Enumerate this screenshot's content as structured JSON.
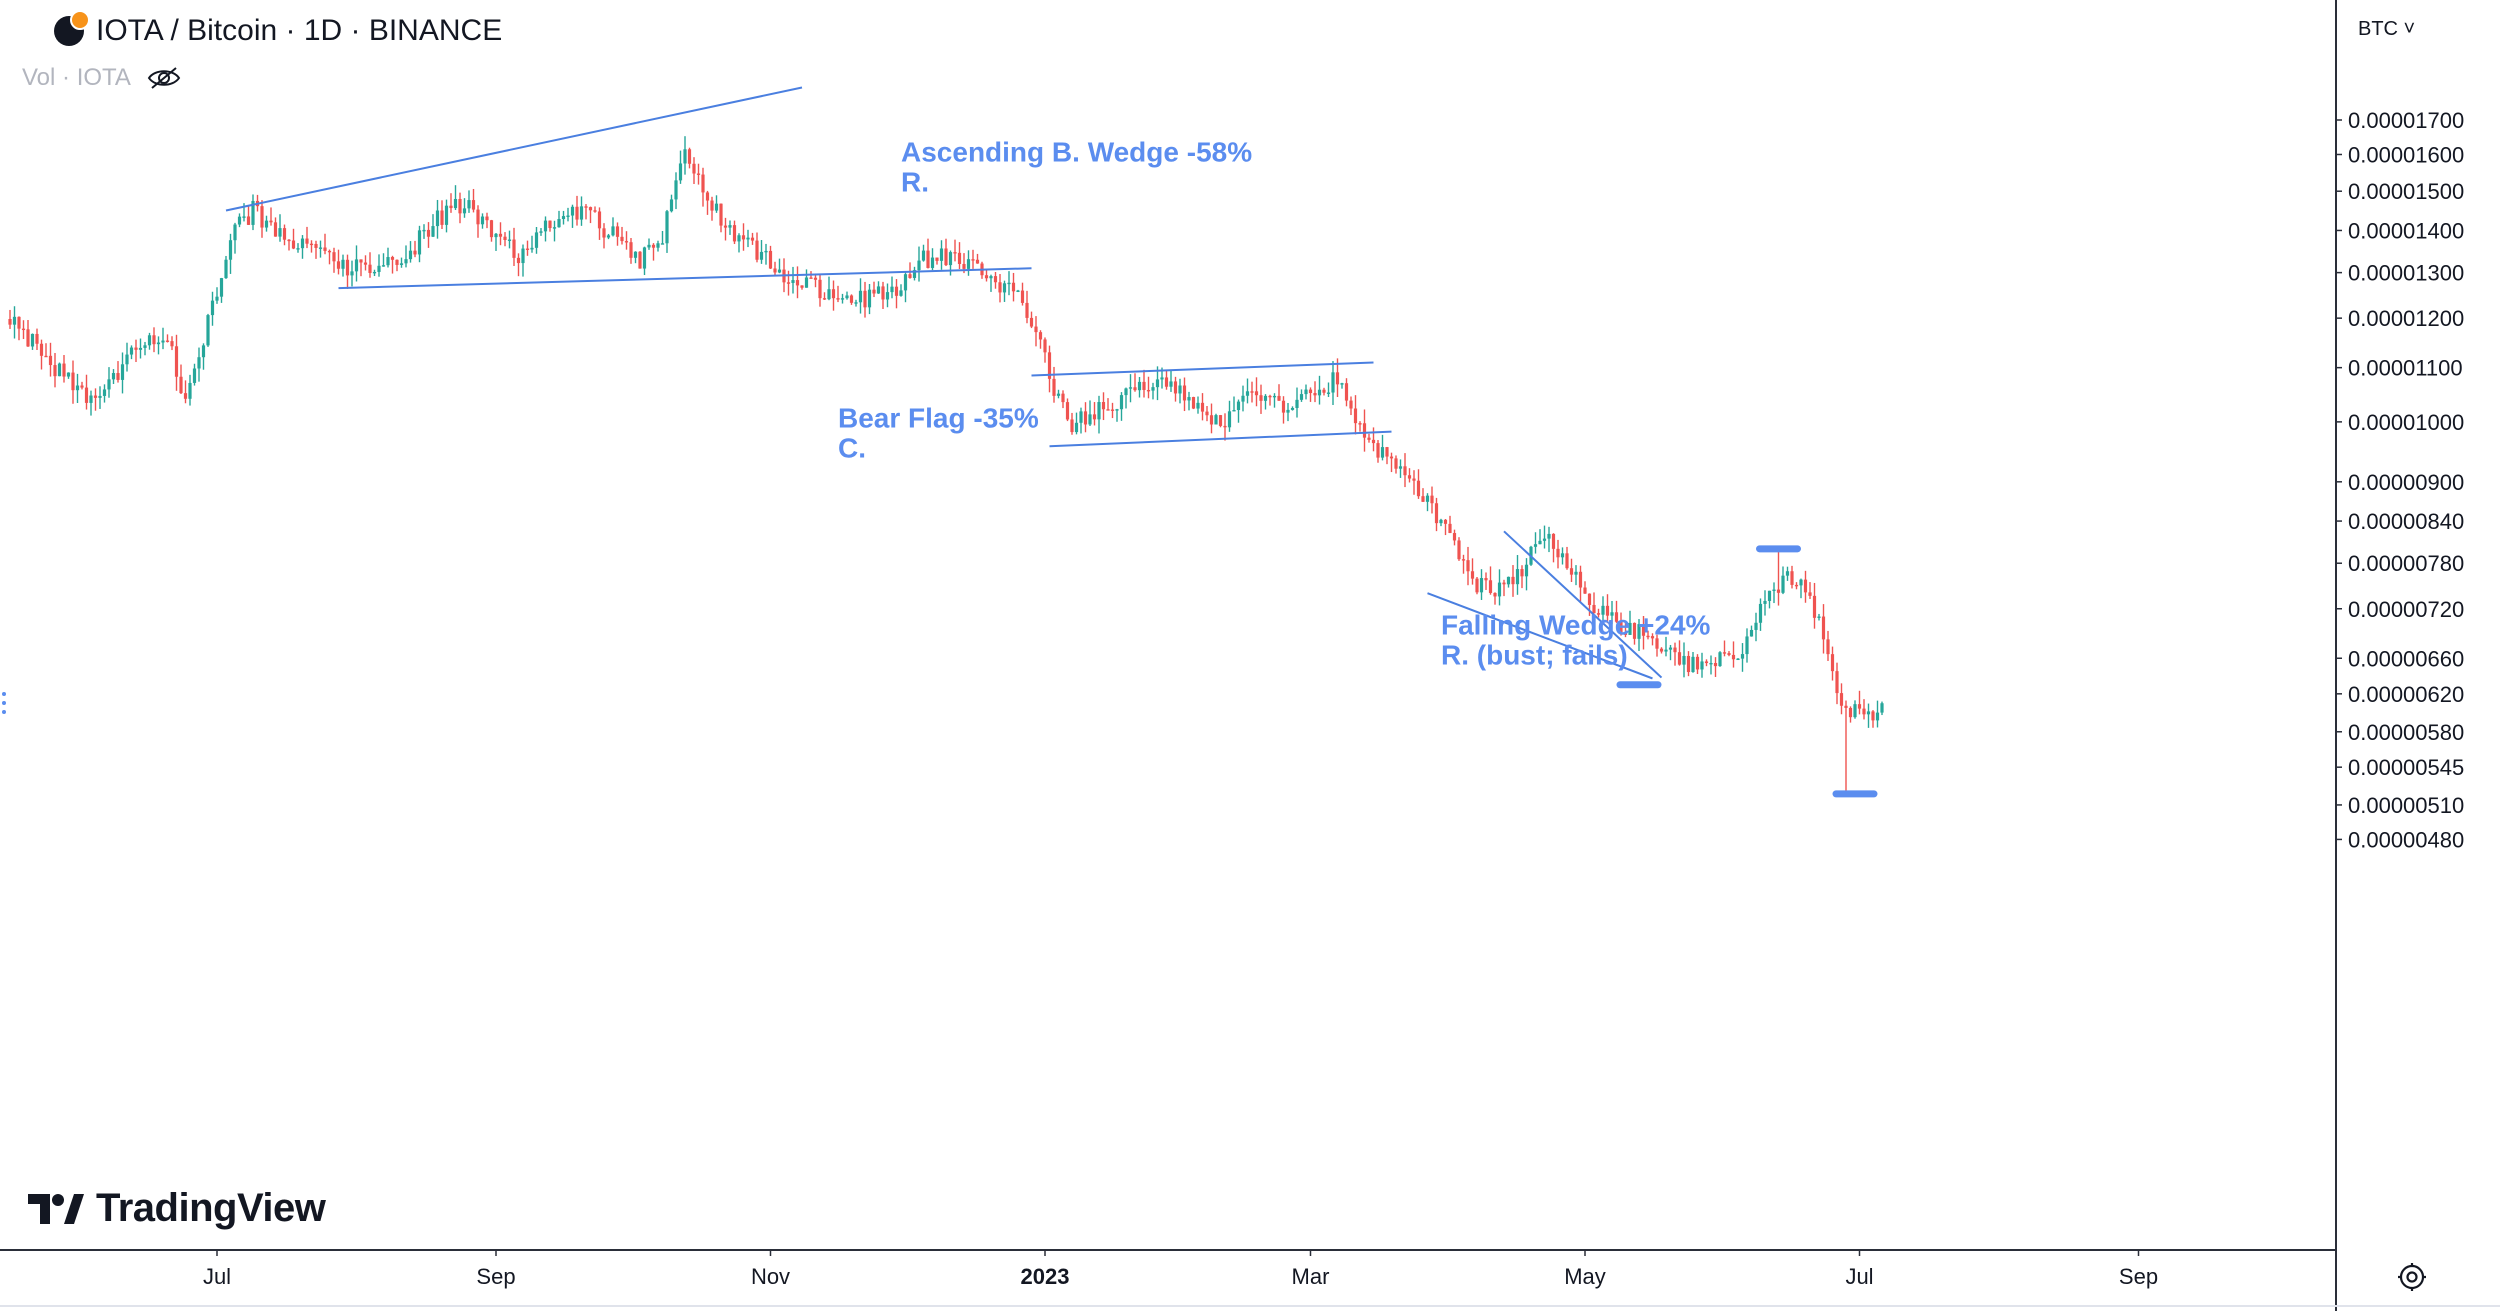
{
  "header": {
    "symbol_title": "IOTA / Bitcoin · 1D · BINANCE",
    "volume_label": "Vol · IOTA",
    "logo_icon": "iota-btc-coin-icon",
    "visibility_icon": "eye-off-icon"
  },
  "toolbar": {
    "currency_label": "BTC ˅",
    "settings_icon": "settings-gear-icon"
  },
  "brand": {
    "name": "TradingView",
    "logo_icon": "tradingview-logo-icon"
  },
  "colors": {
    "up": "#26a69a",
    "down": "#ef5350",
    "annotation": "#5b8def",
    "trendline": "#4a7fe0",
    "axis_text": "#131722",
    "grid_border": "#2a2e39"
  },
  "chart_data": {
    "type": "candlestick",
    "scale": "log",
    "title": "IOTA / Bitcoin · 1D · BINANCE",
    "ylabel": "BTC",
    "ylim": [
      4.6e-06,
      1.85e-05
    ],
    "yticks": [
      {
        "value": 1.7e-05,
        "label": "0.00001700"
      },
      {
        "value": 1.6e-05,
        "label": "0.00001600"
      },
      {
        "value": 1.5e-05,
        "label": "0.00001500"
      },
      {
        "value": 1.4e-05,
        "label": "0.00001400"
      },
      {
        "value": 1.3e-05,
        "label": "0.00001300"
      },
      {
        "value": 1.2e-05,
        "label": "0.00001200"
      },
      {
        "value": 1.1e-05,
        "label": "0.00001100"
      },
      {
        "value": 1e-05,
        "label": "0.00001000"
      },
      {
        "value": 9e-06,
        "label": "0.00000900"
      },
      {
        "value": 8.4e-06,
        "label": "0.00000840"
      },
      {
        "value": 7.8e-06,
        "label": "0.00000780"
      },
      {
        "value": 7.2e-06,
        "label": "0.00000720"
      },
      {
        "value": 6.6e-06,
        "label": "0.00000660"
      },
      {
        "value": 6.2e-06,
        "label": "0.00000620"
      },
      {
        "value": 5.8e-06,
        "label": "0.00000580"
      },
      {
        "value": 5.45e-06,
        "label": "0.00000545"
      },
      {
        "value": 5.1e-06,
        "label": "0.00000510"
      },
      {
        "value": 4.8e-06,
        "label": "0.00000480"
      }
    ],
    "xlim": [
      "2022-05-16",
      "2023-10-23"
    ],
    "xticks": [
      {
        "date": "2022-07-01",
        "label": "Jul",
        "bold": false
      },
      {
        "date": "2022-09-01",
        "label": "Sep",
        "bold": false
      },
      {
        "date": "2022-11-01",
        "label": "Nov",
        "bold": false
      },
      {
        "date": "2023-01-01",
        "label": "2023",
        "bold": true
      },
      {
        "date": "2023-03-01",
        "label": "Mar",
        "bold": false
      },
      {
        "date": "2023-05-01",
        "label": "May",
        "bold": false
      },
      {
        "date": "2023-07-01",
        "label": "Jul",
        "bold": false
      },
      {
        "date": "2023-09-01",
        "label": "Sep",
        "bold": false
      }
    ],
    "price_path": [
      [
        "2022-05-16",
        1.2e-05
      ],
      [
        "2022-05-22",
        1.14e-05
      ],
      [
        "2022-05-28",
        1.08e-05
      ],
      [
        "2022-06-04",
        1.03e-05
      ],
      [
        "2022-06-10",
        1.1e-05
      ],
      [
        "2022-06-16",
        1.17e-05
      ],
      [
        "2022-06-21",
        1.13e-05
      ],
      [
        "2022-06-24",
        1.03e-05
      ],
      [
        "2022-06-27",
        1.12e-05
      ],
      [
        "2022-07-01",
        1.26e-05
      ],
      [
        "2022-07-05",
        1.4e-05
      ],
      [
        "2022-07-09",
        1.45e-05
      ],
      [
        "2022-07-16",
        1.38e-05
      ],
      [
        "2022-07-22",
        1.36e-05
      ],
      [
        "2022-07-28",
        1.32e-05
      ],
      [
        "2022-08-05",
        1.3e-05
      ],
      [
        "2022-08-12",
        1.34e-05
      ],
      [
        "2022-08-19",
        1.43e-05
      ],
      [
        "2022-08-25",
        1.47e-05
      ],
      [
        "2022-09-01",
        1.38e-05
      ],
      [
        "2022-09-06",
        1.34e-05
      ],
      [
        "2022-09-12",
        1.41e-05
      ],
      [
        "2022-09-20",
        1.45e-05
      ],
      [
        "2022-09-27",
        1.39e-05
      ],
      [
        "2022-10-03",
        1.33e-05
      ],
      [
        "2022-10-08",
        1.39e-05
      ],
      [
        "2022-10-13",
        1.62e-05
      ],
      [
        "2022-10-18",
        1.48e-05
      ],
      [
        "2022-10-24",
        1.38e-05
      ],
      [
        "2022-10-30",
        1.34e-05
      ],
      [
        "2022-11-05",
        1.28e-05
      ],
      [
        "2022-11-14",
        1.26e-05
      ],
      [
        "2022-11-22",
        1.24e-05
      ],
      [
        "2022-11-29",
        1.26e-05
      ],
      [
        "2022-12-04",
        1.33e-05
      ],
      [
        "2022-12-12",
        1.34e-05
      ],
      [
        "2022-12-20",
        1.29e-05
      ],
      [
        "2022-12-26",
        1.24e-05
      ],
      [
        "2022-12-30",
        1.18e-05
      ],
      [
        "2023-01-03",
        1.06e-05
      ],
      [
        "2023-01-07",
        9.9e-06
      ],
      [
        "2023-01-12",
        1.02e-05
      ],
      [
        "2023-01-20",
        1.05e-05
      ],
      [
        "2023-01-27",
        1.08e-05
      ],
      [
        "2023-02-03",
        1.03e-05
      ],
      [
        "2023-02-09",
        9.95e-06
      ],
      [
        "2023-02-16",
        1.06e-05
      ],
      [
        "2023-02-23",
        1.03e-05
      ],
      [
        "2023-03-01",
        1.05e-05
      ],
      [
        "2023-03-07",
        1.08e-05
      ],
      [
        "2023-03-10",
        1.02e-05
      ],
      [
        "2023-03-14",
        9.6e-06
      ],
      [
        "2023-03-20",
        9.3e-06
      ],
      [
        "2023-03-26",
        8.8e-06
      ],
      [
        "2023-04-01",
        8.15e-06
      ],
      [
        "2023-04-06",
        7.5e-06
      ],
      [
        "2023-04-11",
        7.45e-06
      ],
      [
        "2023-04-17",
        7.75e-06
      ],
      [
        "2023-04-23",
        8.25e-06
      ],
      [
        "2023-04-27",
        7.75e-06
      ],
      [
        "2023-05-02",
        7.3e-06
      ],
      [
        "2023-05-08",
        7e-06
      ],
      [
        "2023-05-14",
        6.9e-06
      ],
      [
        "2023-05-19",
        6.75e-06
      ],
      [
        "2023-05-23",
        6.55e-06
      ],
      [
        "2023-05-27",
        6.5e-06
      ],
      [
        "2023-06-01",
        6.64e-06
      ],
      [
        "2023-06-04",
        6.6e-06
      ],
      [
        "2023-06-07",
        6.95e-06
      ],
      [
        "2023-06-11",
        7.45e-06
      ],
      [
        "2023-06-14",
        7.55e-06
      ],
      [
        "2023-06-17",
        7.6e-06
      ],
      [
        "2023-06-20",
        7.3e-06
      ],
      [
        "2023-06-23",
        6.9e-06
      ],
      [
        "2023-06-27",
        6e-06
      ],
      [
        "2023-07-02",
        6e-06
      ],
      [
        "2023-07-06",
        6.03e-06
      ]
    ],
    "wick_extremes": [
      {
        "date": "2023-06-13",
        "high": 8e-06
      },
      {
        "date": "2023-06-28",
        "low": 5.2e-06
      }
    ],
    "trendlines": [
      {
        "name": "ascending-wedge-upper",
        "from": [
          "2022-07-03",
          1.45e-05
        ],
        "to": [
          "2022-11-08",
          1.8e-05
        ]
      },
      {
        "name": "ascending-wedge-lower",
        "from": [
          "2022-07-28",
          1.265e-05
        ],
        "to": [
          "2022-12-29",
          1.31e-05
        ]
      },
      {
        "name": "bear-flag-upper",
        "from": [
          "2022-12-29",
          1.085e-05
        ],
        "to": [
          "2023-03-15",
          1.11e-05
        ]
      },
      {
        "name": "bear-flag-lower",
        "from": [
          "2023-01-02",
          9.58e-06
        ],
        "to": [
          "2023-03-19",
          9.83e-06
        ]
      },
      {
        "name": "falling-wedge-upper",
        "from": [
          "2023-04-13",
          8.25e-06
        ],
        "to": [
          "2023-05-18",
          6.38e-06
        ]
      },
      {
        "name": "falling-wedge-lower",
        "from": [
          "2023-03-27",
          7.4e-06
        ],
        "to": [
          "2023-05-16",
          6.37e-06
        ]
      }
    ],
    "price_markers": [
      {
        "name": "falling-wedge-low-marker",
        "date": "2023-05-13",
        "value": 6.3e-06
      },
      {
        "name": "breakout-high-marker",
        "date": "2023-06-13",
        "value": 8e-06
      },
      {
        "name": "drop-low-marker",
        "date": "2023-06-30",
        "value": 5.2e-06
      }
    ],
    "annotations": [
      {
        "name": "ascending-wedge-annotation",
        "lines": [
          "Ascending B. Wedge -58%",
          "R."
        ],
        "date": "2022-11-30",
        "value": 1.58e-05
      },
      {
        "name": "bear-flag-annotation",
        "lines": [
          "Bear Flag -35%",
          "C."
        ],
        "date": "2022-11-16",
        "value": 9.9e-06
      },
      {
        "name": "falling-wedge-annotation",
        "lines": [
          "Falling Wedge +24%",
          "R. (bust; fails)"
        ],
        "date": "2023-03-30",
        "value": 6.88e-06
      }
    ]
  }
}
